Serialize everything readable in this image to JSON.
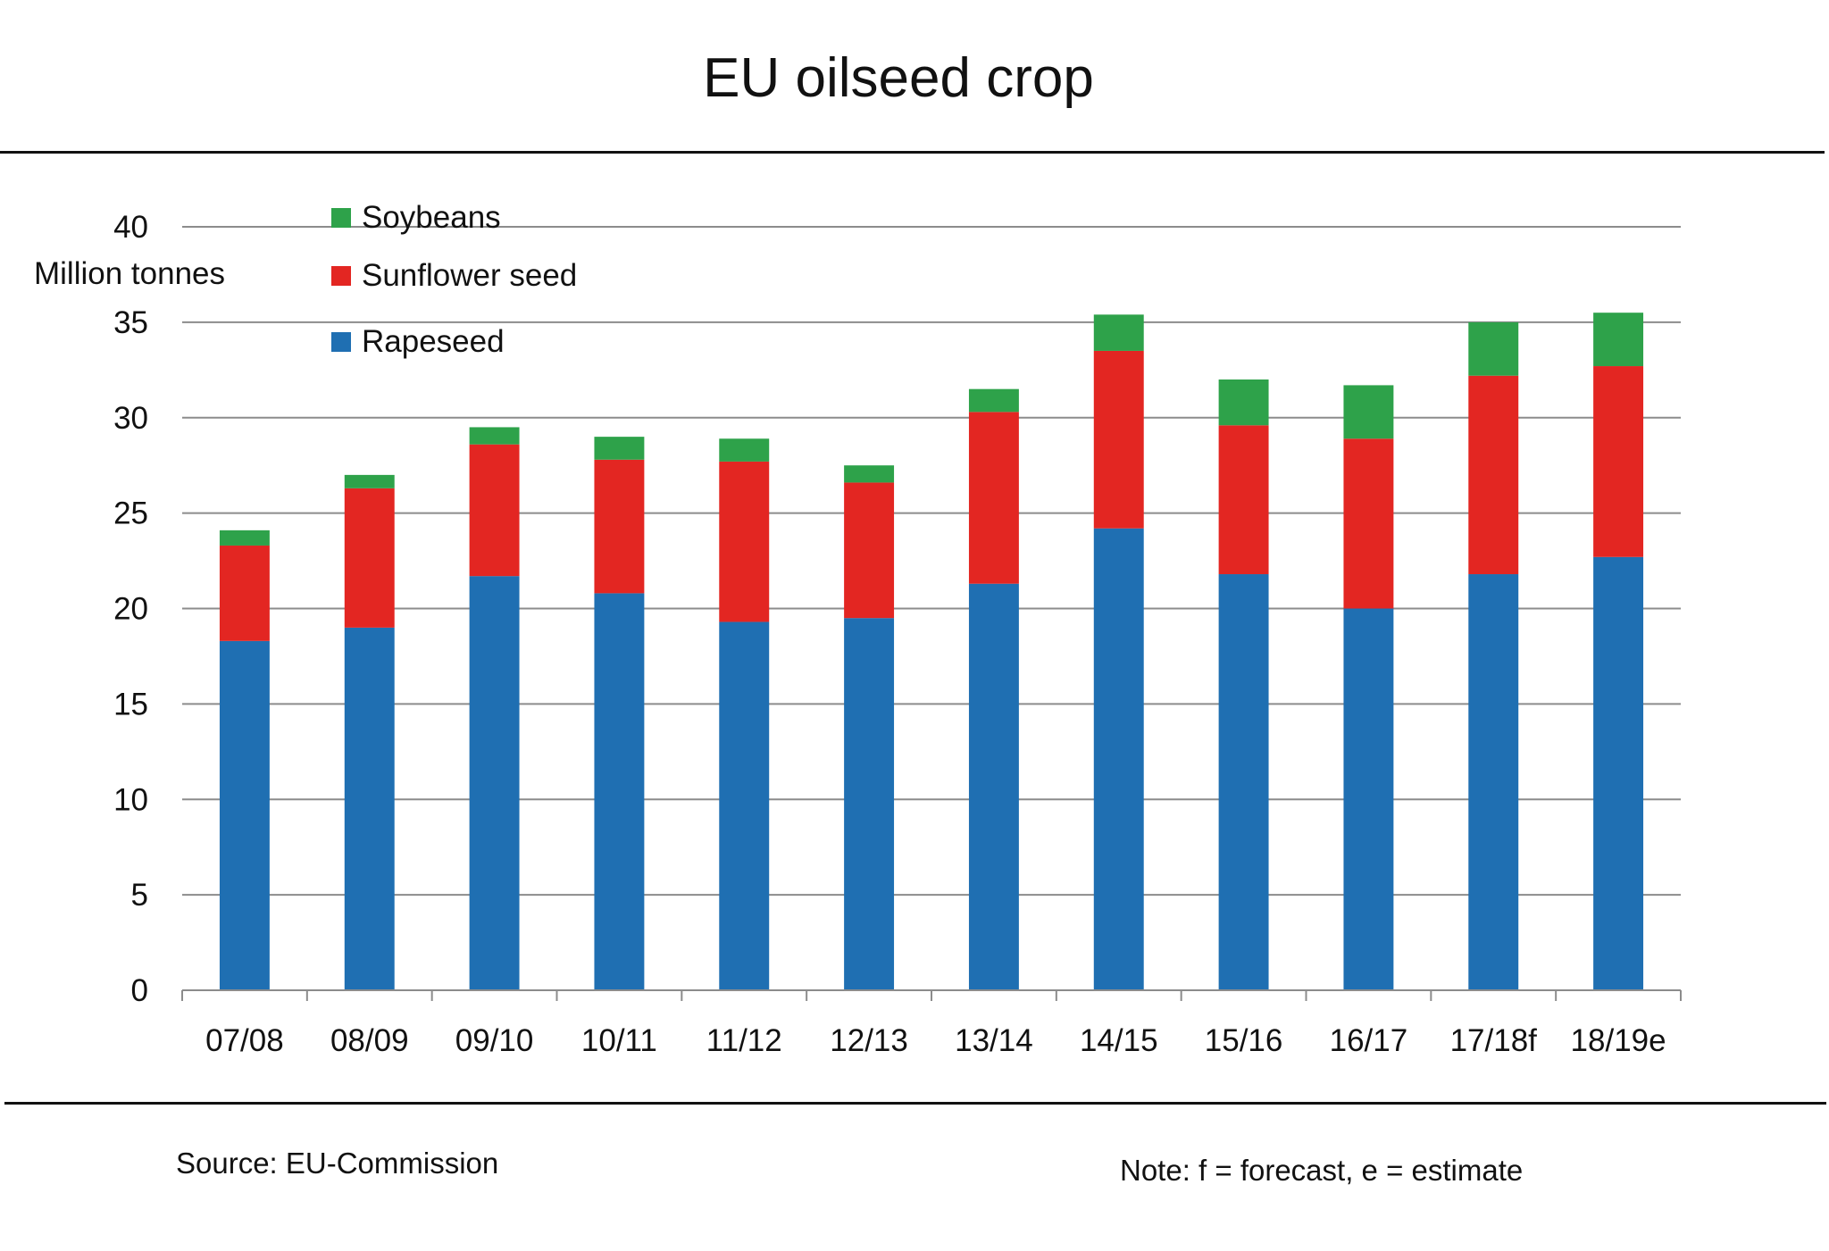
{
  "header": {
    "title": "EU oilseed crop"
  },
  "footer": {
    "source": "Source: EU-Commission",
    "note": "Note: f = forecast, e = estimate"
  },
  "colors": {
    "rapeseed": "#1f6fb2",
    "sunflower": "#e32622",
    "soybeans": "#2ea24a",
    "grid": "#8c8c8c",
    "text": "#111111"
  },
  "chart_data": {
    "type": "bar",
    "stacked": true,
    "title": "EU oilseed crop",
    "ylabel": "Million tonnes",
    "xlabel": "",
    "ylim": [
      0,
      40
    ],
    "yticks": [
      0,
      5,
      10,
      15,
      20,
      25,
      30,
      35,
      40
    ],
    "grid": true,
    "legend_position": "top-left",
    "categories": [
      "07/08",
      "08/09",
      "09/10",
      "10/11",
      "11/12",
      "12/13",
      "13/14",
      "14/15",
      "15/16",
      "16/17",
      "17/18f",
      "18/19e"
    ],
    "series": [
      {
        "name": "Rapeseed",
        "color": "#1f6fb2",
        "values": [
          18.3,
          19.0,
          21.7,
          20.8,
          19.3,
          19.5,
          21.3,
          24.2,
          21.8,
          20.0,
          21.8,
          22.7
        ]
      },
      {
        "name": "Sunflower seed",
        "color": "#e32622",
        "values": [
          5.0,
          7.3,
          6.9,
          7.0,
          8.4,
          7.1,
          9.0,
          9.3,
          7.8,
          8.9,
          10.4,
          10.0
        ]
      },
      {
        "name": "Soybeans",
        "color": "#2ea24a",
        "values": [
          0.8,
          0.7,
          0.9,
          1.2,
          1.2,
          0.9,
          1.2,
          1.9,
          2.4,
          2.8,
          2.8,
          2.8
        ]
      }
    ]
  }
}
